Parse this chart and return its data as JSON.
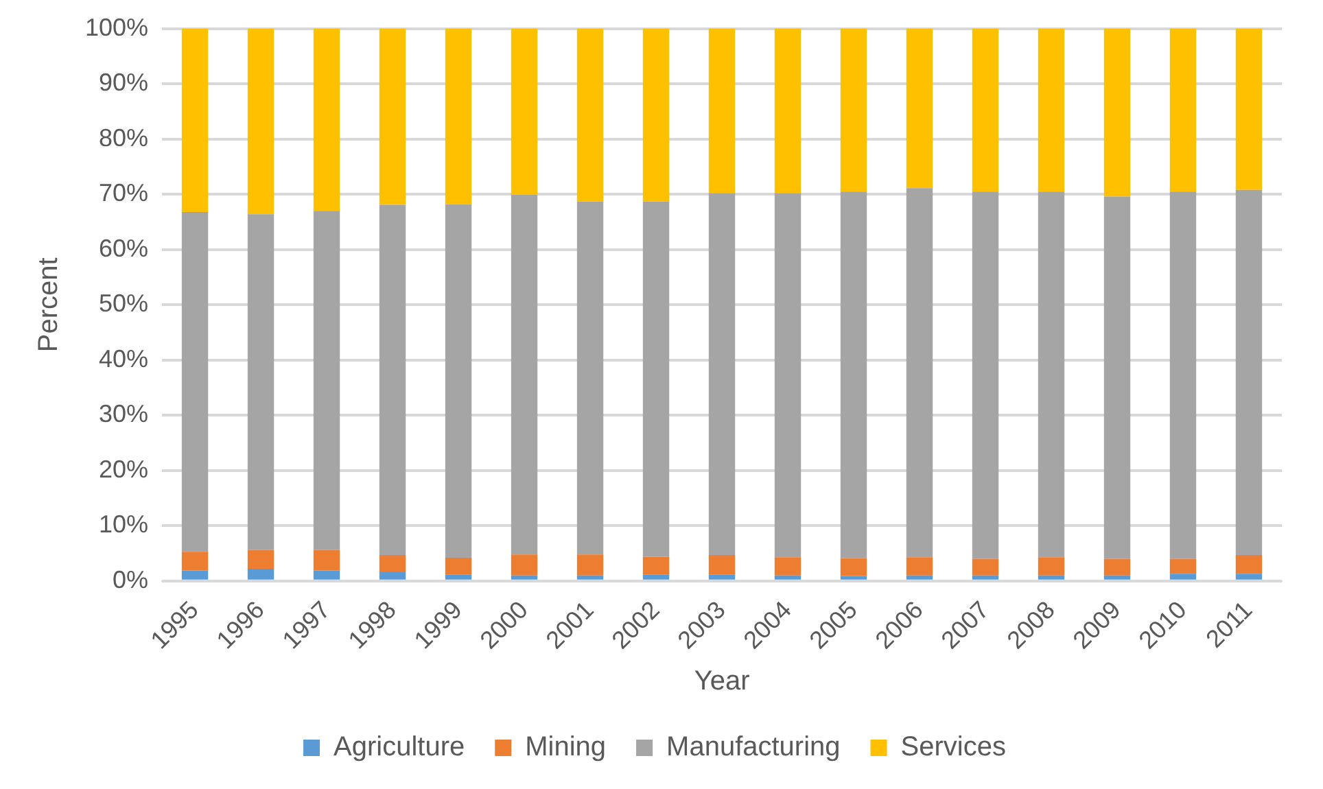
{
  "chart_data": {
    "type": "bar",
    "stacked": true,
    "xlabel": "Year",
    "ylabel": "Percent",
    "categories": [
      "1995",
      "1996",
      "1997",
      "1998",
      "1999",
      "2000",
      "2001",
      "2002",
      "2003",
      "2004",
      "2005",
      "2006",
      "2007",
      "2008",
      "2009",
      "2010",
      "2011"
    ],
    "series": [
      {
        "name": "Agriculture",
        "color": "#5b9bd5",
        "values": [
          1.9,
          2.2,
          1.9,
          1.6,
          1.2,
          1.0,
          1.0,
          1.2,
          1.2,
          1.0,
          0.9,
          1.0,
          1.0,
          1.0,
          1.0,
          1.3,
          1.3
        ]
      },
      {
        "name": "Mining",
        "color": "#ed7d31",
        "values": [
          3.4,
          3.4,
          3.7,
          3.1,
          3.0,
          3.8,
          3.8,
          3.2,
          3.5,
          3.3,
          3.2,
          3.3,
          3.0,
          3.3,
          3.0,
          2.7,
          3.4
        ]
      },
      {
        "name": "Manufacturing",
        "color": "#a5a5a5",
        "values": [
          61.5,
          60.8,
          61.4,
          63.4,
          64.0,
          65.1,
          63.9,
          64.3,
          65.5,
          65.9,
          66.4,
          66.8,
          66.5,
          66.2,
          65.6,
          66.5,
          66.1
        ]
      },
      {
        "name": "Services",
        "color": "#ffc000",
        "values": [
          33.2,
          33.6,
          33.0,
          31.9,
          31.8,
          30.1,
          31.3,
          31.3,
          29.8,
          29.8,
          29.5,
          28.9,
          29.5,
          29.5,
          30.4,
          29.5,
          29.2
        ]
      }
    ],
    "ylim": [
      0,
      100
    ],
    "yticks": [
      {
        "value": 0,
        "label": "0%"
      },
      {
        "value": 10,
        "label": "10%"
      },
      {
        "value": 20,
        "label": "20%"
      },
      {
        "value": 30,
        "label": "30%"
      },
      {
        "value": 40,
        "label": "40%"
      },
      {
        "value": 50,
        "label": "50%"
      },
      {
        "value": 60,
        "label": "60%"
      },
      {
        "value": 70,
        "label": "70%"
      },
      {
        "value": 80,
        "label": "80%"
      },
      {
        "value": 90,
        "label": "90%"
      },
      {
        "value": 100,
        "label": "100%"
      }
    ],
    "grid": "y",
    "legend": "bottom"
  }
}
